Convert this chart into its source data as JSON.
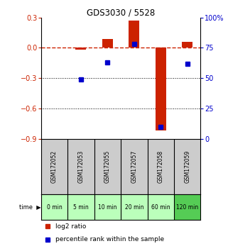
{
  "title": "GDS3030 / 5528",
  "samples": [
    "GSM172052",
    "GSM172053",
    "GSM172055",
    "GSM172057",
    "GSM172058",
    "GSM172059"
  ],
  "time_labels": [
    "0 min",
    "5 min",
    "10 min",
    "20 min",
    "60 min",
    "120 min"
  ],
  "log2_ratio": [
    0.0,
    -0.02,
    0.09,
    0.27,
    -0.82,
    0.06
  ],
  "percentile_rank": [
    null,
    49,
    63,
    78,
    10,
    62
  ],
  "ylim_left": [
    -0.9,
    0.3
  ],
  "ylim_right": [
    0,
    100
  ],
  "yticks_left": [
    0.3,
    0.0,
    -0.3,
    -0.6,
    -0.9
  ],
  "yticks_right": [
    100,
    75,
    50,
    25,
    0
  ],
  "bar_color": "#cc2200",
  "scatter_color": "#0000cc",
  "dashed_line_color": "#cc2200",
  "dotted_line_color": "#000000",
  "background_plot": "#ffffff",
  "background_gsm": "#cccccc",
  "background_time_light": "#bbffbb",
  "background_time_dark": "#55cc55",
  "legend_log2": "log2 ratio",
  "legend_pct": "percentile rank within the sample",
  "bar_width": 0.4,
  "marker_size": 4
}
